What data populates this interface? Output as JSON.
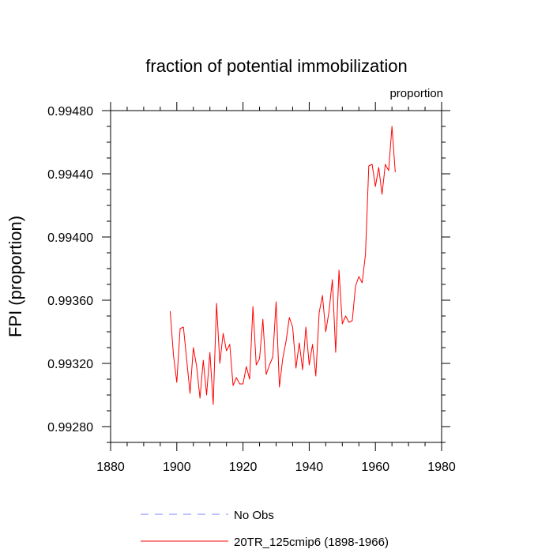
{
  "chart_data": {
    "type": "line",
    "title": "fraction of potential immobilization",
    "units_label": "proportion",
    "xlabel": "",
    "ylabel": "FPI  (proportion)",
    "xlim": [
      1880,
      1980
    ],
    "ylim": [
      0.9927,
      0.9948
    ],
    "x_ticks": [
      1880,
      1900,
      1920,
      1940,
      1960,
      1980
    ],
    "x_tick_labels": [
      "1880",
      "1900",
      "1920",
      "1940",
      "1960",
      "1980"
    ],
    "x_minor_step": 5,
    "y_ticks": [
      0.9928,
      0.9932,
      0.9936,
      0.994,
      0.9944,
      0.9948
    ],
    "y_tick_labels": [
      "0.99280",
      "0.99320",
      "0.99360",
      "0.99400",
      "0.99440",
      "0.99480"
    ],
    "y_minor_step": 0.0001,
    "grid": false,
    "legend_position": "bottom",
    "series": [
      {
        "name": "No Obs",
        "color": "#8080ff",
        "style": "dashed",
        "x": [],
        "values": []
      },
      {
        "name": "20TR_125cmip6 (1898-1966)",
        "color": "#ff0000",
        "style": "solid",
        "x": [
          1898,
          1899,
          1900,
          1901,
          1902,
          1903,
          1904,
          1905,
          1906,
          1907,
          1908,
          1909,
          1910,
          1911,
          1912,
          1913,
          1914,
          1915,
          1916,
          1917,
          1918,
          1919,
          1920,
          1921,
          1922,
          1923,
          1924,
          1925,
          1926,
          1927,
          1928,
          1929,
          1930,
          1931,
          1932,
          1933,
          1934,
          1935,
          1936,
          1937,
          1938,
          1939,
          1940,
          1941,
          1942,
          1943,
          1944,
          1945,
          1946,
          1947,
          1948,
          1949,
          1950,
          1951,
          1952,
          1953,
          1954,
          1955,
          1956,
          1957,
          1958,
          1959,
          1960,
          1961,
          1962,
          1963,
          1964,
          1965,
          1966
        ],
        "values": [
          0.99353,
          0.99325,
          0.99308,
          0.99342,
          0.99343,
          0.99322,
          0.99301,
          0.9933,
          0.99318,
          0.99298,
          0.99322,
          0.993,
          0.99327,
          0.99294,
          0.99358,
          0.9932,
          0.99339,
          0.99328,
          0.99332,
          0.99306,
          0.99311,
          0.99307,
          0.99307,
          0.99318,
          0.9931,
          0.99356,
          0.99319,
          0.99323,
          0.99348,
          0.99313,
          0.99319,
          0.99324,
          0.99359,
          0.99305,
          0.99323,
          0.99334,
          0.99349,
          0.99343,
          0.99317,
          0.99333,
          0.99316,
          0.99343,
          0.99319,
          0.99332,
          0.99312,
          0.99352,
          0.99363,
          0.9934,
          0.99353,
          0.99373,
          0.99327,
          0.99379,
          0.99345,
          0.9935,
          0.99346,
          0.99347,
          0.99369,
          0.99375,
          0.99371,
          0.99389,
          0.99445,
          0.99446,
          0.99432,
          0.99444,
          0.99427,
          0.99446,
          0.99442,
          0.9947,
          0.99441
        ]
      }
    ]
  }
}
